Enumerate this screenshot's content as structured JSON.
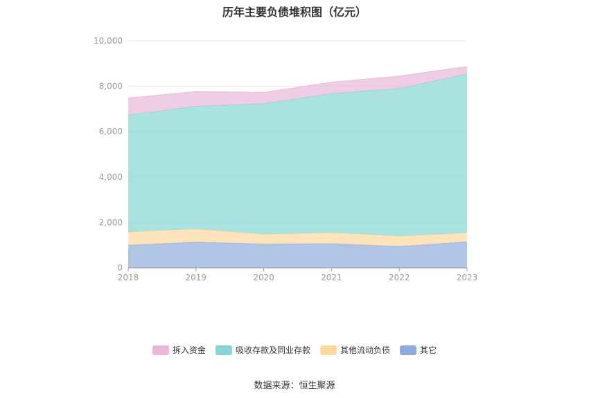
{
  "chart_data": {
    "type": "area",
    "stacked": true,
    "title": "历年主要负债堆积图（亿元）",
    "x": [
      "2018",
      "2019",
      "2020",
      "2021",
      "2022",
      "2023"
    ],
    "y_ticks": [
      "0",
      "2,000",
      "4,000",
      "6,000",
      "8,000",
      "10,000"
    ],
    "ylim": [
      0,
      10000
    ],
    "grid": true,
    "legend_position": "bottom",
    "series": [
      {
        "name": "其它",
        "color": "#90acdd",
        "values": [
          1000,
          1140,
          1050,
          1070,
          950,
          1150
        ]
      },
      {
        "name": "其他流动负债",
        "color": "#fdd9a0",
        "values": [
          580,
          580,
          430,
          480,
          450,
          390
        ]
      },
      {
        "name": "吸收存款及同业存款",
        "color": "#86d6d6",
        "values": [
          5150,
          5400,
          5750,
          6130,
          6500,
          7000
        ]
      },
      {
        "name": "拆入资金",
        "color": "#e8b8d8",
        "values": [
          750,
          650,
          500,
          500,
          550,
          330
        ]
      }
    ],
    "legend_order": [
      3,
      2,
      1,
      0
    ]
  },
  "source": "数据来源：恒生聚源"
}
